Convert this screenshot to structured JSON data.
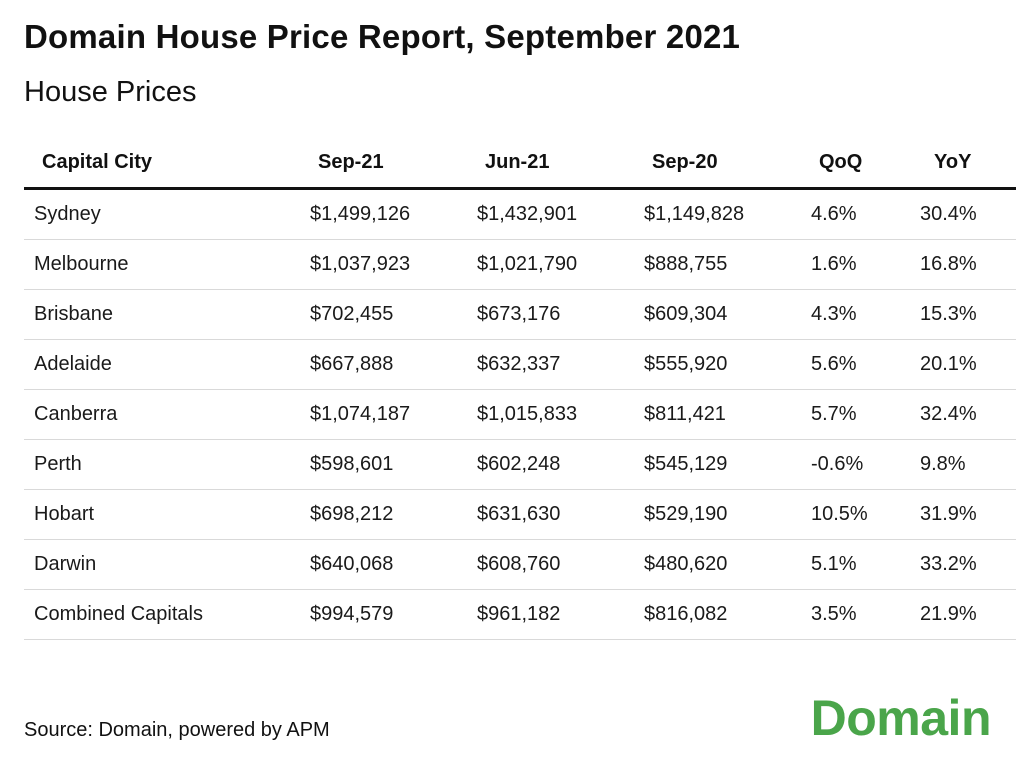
{
  "title": "Domain House Price Report, September 2021",
  "subtitle": "House Prices",
  "table": {
    "headers": [
      "Capital City",
      "Sep-21",
      "Jun-21",
      "Sep-20",
      "QoQ",
      "YoY"
    ],
    "rows": [
      [
        "Sydney",
        "$1,499,126",
        "$1,432,901",
        "$1,149,828",
        "4.6%",
        "30.4%"
      ],
      [
        "Melbourne",
        "$1,037,923",
        "$1,021,790",
        "$888,755",
        "1.6%",
        "16.8%"
      ],
      [
        "Brisbane",
        "$702,455",
        "$673,176",
        "$609,304",
        "4.3%",
        "15.3%"
      ],
      [
        "Adelaide",
        "$667,888",
        "$632,337",
        "$555,920",
        "5.6%",
        "20.1%"
      ],
      [
        "Canberra",
        "$1,074,187",
        "$1,015,833",
        "$811,421",
        "5.7%",
        "32.4%"
      ],
      [
        "Perth",
        "$598,601",
        "$602,248",
        "$545,129",
        "-0.6%",
        "9.8%"
      ],
      [
        "Hobart",
        "$698,212",
        "$631,630",
        "$529,190",
        "10.5%",
        "31.9%"
      ],
      [
        "Darwin",
        "$640,068",
        "$608,760",
        "$480,620",
        "5.1%",
        "33.2%"
      ],
      [
        "Combined Capitals",
        "$994,579",
        "$961,182",
        "$816,082",
        "3.5%",
        "21.9%"
      ]
    ]
  },
  "source": "Source: Domain, powered by APM",
  "logo": {
    "text": "Domain",
    "color": "#4aa54a"
  },
  "colors": {
    "header_rule": "#111111",
    "row_rule": "#d9d9d9"
  }
}
